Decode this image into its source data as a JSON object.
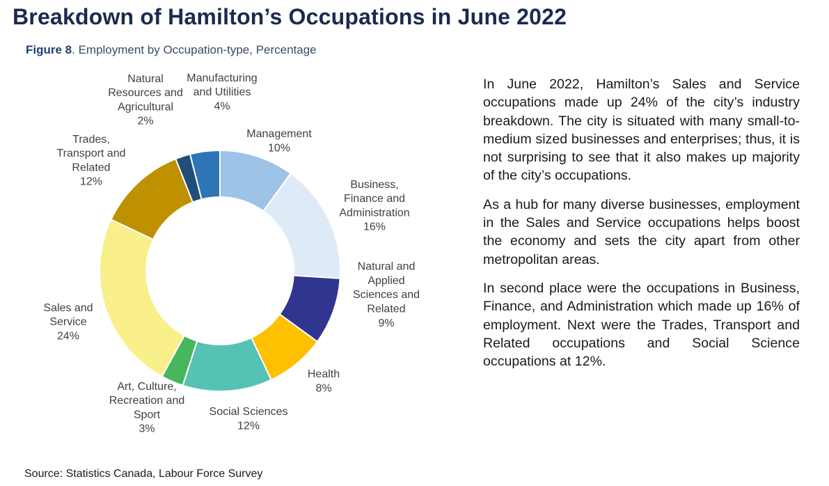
{
  "title": "Breakdown of Hamilton’s Occupations in June 2022",
  "subtitle": {
    "figure": "Figure 8",
    "text": ". Employment by Occupation-type, Percentage"
  },
  "chart_data": {
    "type": "pie",
    "donut": true,
    "unit": "%",
    "slices": [
      {
        "lines": [
          "Management"
        ],
        "value_label": "10%",
        "value": 10,
        "color": "#9dc3e6"
      },
      {
        "lines": [
          "Business,",
          "Finance and",
          "Administration"
        ],
        "value_label": "16%",
        "value": 16,
        "color": "#deebf7"
      },
      {
        "lines": [
          "Natural and",
          "Applied",
          "Sciences and",
          "Related"
        ],
        "value_label": "9%",
        "value": 9,
        "color": "#30368f"
      },
      {
        "lines": [
          "Health"
        ],
        "value_label": "8%",
        "value": 8,
        "color": "#ffc000"
      },
      {
        "lines": [
          "Social Sciences"
        ],
        "value_label": "12%",
        "value": 12,
        "color": "#56c2b5"
      },
      {
        "lines": [
          "Art, Culture,",
          "Recreation and",
          "Sport"
        ],
        "value_label": "3%",
        "value": 3,
        "color": "#48b65c"
      },
      {
        "lines": [
          "Sales and",
          "Service"
        ],
        "value_label": "24%",
        "value": 24,
        "color": "#f9ef8b"
      },
      {
        "lines": [
          "Trades,",
          "Transport and",
          "Related"
        ],
        "value_label": "12%",
        "value": 12,
        "color": "#bf9000"
      },
      {
        "lines": [
          "Natural",
          "Resources and",
          "Agricultural"
        ],
        "value_label": "2%",
        "value": 2,
        "color": "#1f4e79"
      },
      {
        "lines": [
          "Manufacturing",
          "and Utilities"
        ],
        "value_label": "4%",
        "value": 4,
        "color": "#2e75b6"
      }
    ]
  },
  "paragraphs": [
    "In June 2022, Hamilton’s Sales and Service occupations made up 24% of the city’s industry breakdown. The city is situated with many small-to-medium sized businesses and enterprises; thus, it is not surprising to see that it also makes up majority of the city’s occupations.",
    "As a hub for many diverse businesses, employment in the Sales and Service occupations helps boost the economy and sets the city apart from other metropolitan areas.",
    "In second place were the occupations in Business, Finance, and Administration which made up 16% of employment. Next were the Trades, Transport and Related occupations and Social Science occupations at 12%."
  ],
  "source": "Source: Statistics Canada, Labour Force Survey"
}
